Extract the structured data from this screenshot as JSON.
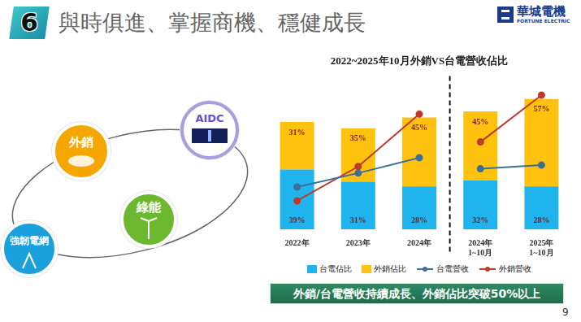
{
  "slide": {
    "number_badge": "6",
    "title": "與時俱進、掌握商機、穩健成長",
    "logo": {
      "name": "華城電機",
      "name_en": "FORTUNE ELECTRIC"
    },
    "diagram": {
      "nodes": [
        {
          "label": "外銷"
        },
        {
          "label": "AIDC"
        },
        {
          "label": "綠能"
        },
        {
          "label": "強韌電網"
        }
      ]
    },
    "banner": "外銷/台電營收持續成長、外銷佔比突破50%以上",
    "page_number": "9"
  },
  "chart_data": {
    "type": "bar",
    "title": "2022~2025年10月外銷VS台電營收佔比",
    "categories": [
      "2022年",
      "2023年",
      "2024年",
      [
        "2024年",
        "1~10月"
      ],
      [
        "2025年",
        "1~10月"
      ]
    ],
    "stacked": true,
    "grid": false,
    "tick_labels": "x",
    "legend": "bottom",
    "ylim": [
      0,
      100
    ],
    "y2lim": [
      0,
      100
    ],
    "series": [
      {
        "name": "台電佔比",
        "type": "bar",
        "color": "#1fb4ee",
        "values": [
          39,
          31,
          28,
          32,
          28
        ],
        "value_labels": [
          "39%",
          "31%",
          "28%",
          "32%",
          "28%"
        ],
        "data_labels": true
      },
      {
        "name": "外銷佔比",
        "type": "bar",
        "color": "#ffc20e",
        "values": [
          31,
          35,
          45,
          45,
          57
        ],
        "value_labels": [
          "31%",
          "35%",
          "45%",
          "45%",
          "57%"
        ],
        "data_labels": true
      },
      {
        "name": "台電營收",
        "type": "line",
        "color": "#3d6f98",
        "axis": "y2",
        "marker": "circle",
        "values": [
          27.6,
          36.7,
          46.7,
          39.5,
          41.9
        ]
      },
      {
        "name": "外銷營收",
        "type": "line",
        "color": "#c0392b",
        "axis": "y2",
        "marker": "circle",
        "values": [
          18.6,
          41,
          75.2,
          57,
          87.6
        ]
      }
    ]
  }
}
